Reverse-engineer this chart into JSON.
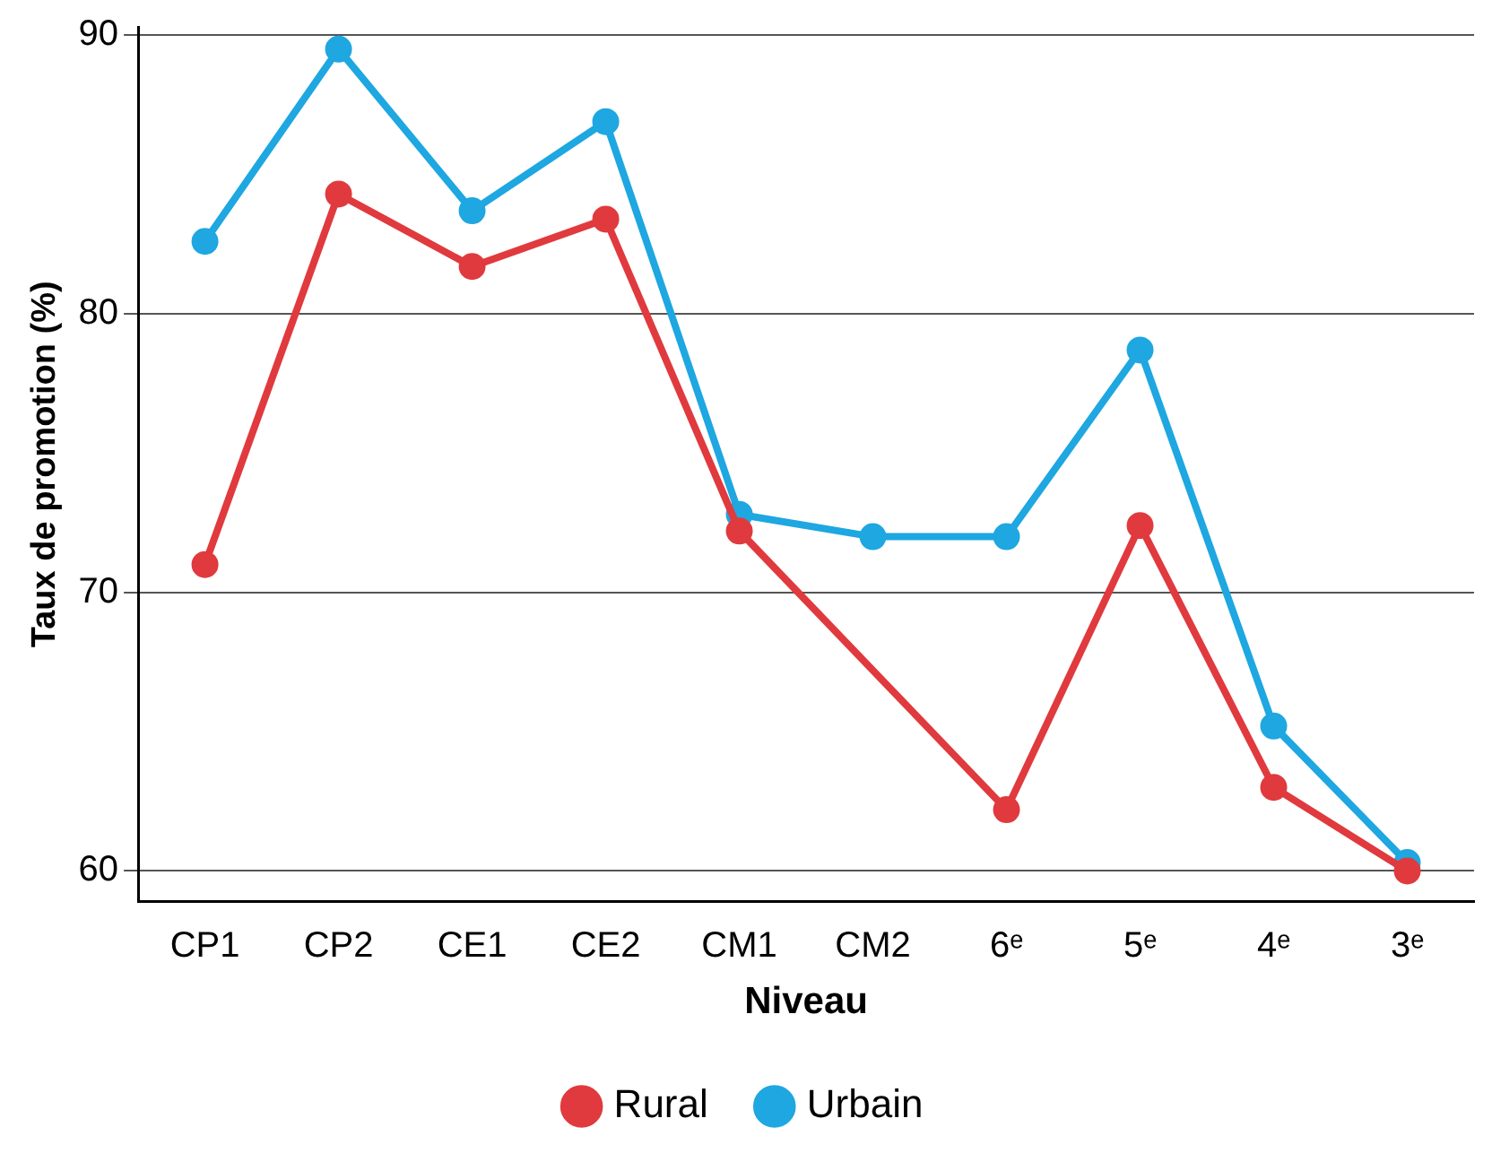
{
  "chart_data": {
    "type": "line",
    "xlabel": "Niveau",
    "ylabel": "Taux de promotion (%)",
    "categories": [
      "CP1",
      "CP2",
      "CE1",
      "CE2",
      "CM1",
      "CM2",
      "6ᵉ",
      "5ᵉ",
      "4ᵉ",
      "3ᵉ"
    ],
    "series": [
      {
        "name": "Urbain",
        "color": "#1ea7e1",
        "values": [
          82.6,
          89.5,
          83.7,
          86.9,
          72.8,
          72.0,
          72.0,
          78.7,
          65.2,
          60.3
        ]
      },
      {
        "name": "Rural",
        "color": "#e03a3e",
        "values": [
          71.0,
          84.3,
          81.7,
          83.4,
          72.2,
          null,
          62.2,
          72.4,
          63.0,
          60.0
        ]
      }
    ],
    "ylim": [
      58.9,
      90.3
    ],
    "yticks": [
      60,
      70,
      80,
      90
    ],
    "grid": "y",
    "legend": "bottom",
    "marker": "circle",
    "line_style": "solid"
  }
}
